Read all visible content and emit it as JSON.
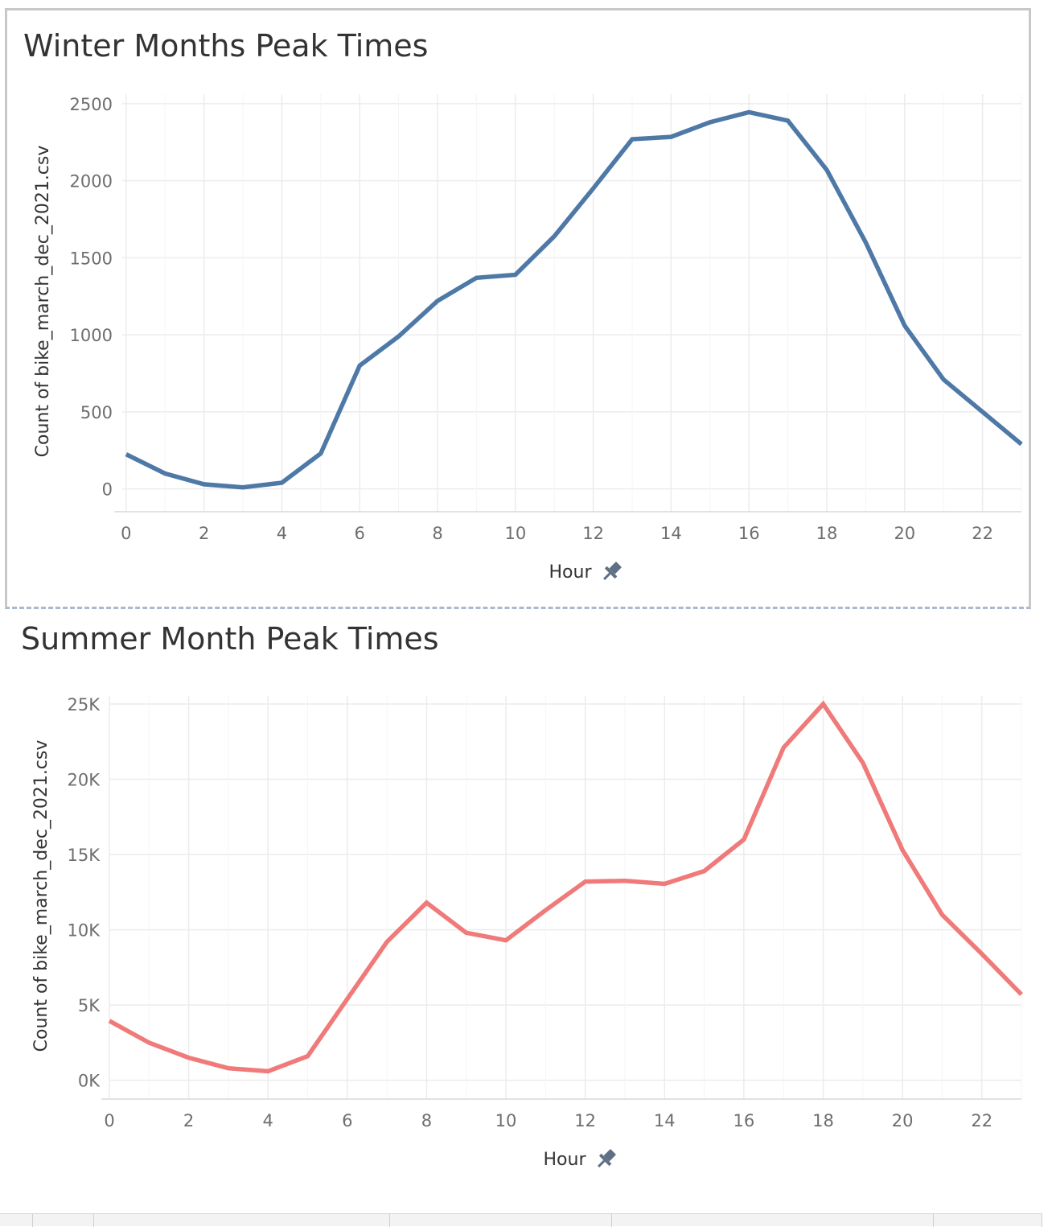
{
  "charts": [
    {
      "id": "winter",
      "title": "Winter Months Peak Times",
      "color": "#4e79a7"
    },
    {
      "id": "summer",
      "title": "Summer Month Peak Times",
      "color": "#f07a7a"
    }
  ],
  "chart_data": [
    {
      "type": "line",
      "title": "Winter Months Peak Times",
      "xlabel": "Hour",
      "ylabel": "Count of bike_march_dec_2021.csv",
      "x": [
        0,
        1,
        2,
        3,
        4,
        5,
        6,
        7,
        8,
        9,
        10,
        11,
        12,
        13,
        14,
        15,
        16,
        17,
        18,
        19,
        20,
        21,
        22,
        23
      ],
      "series": [
        {
          "values": [
            225,
            100,
            30,
            10,
            40,
            230,
            800,
            990,
            1220,
            1370,
            1390,
            1640,
            1950,
            2270,
            2285,
            2380,
            2445,
            2390,
            2070,
            1600,
            1060,
            710,
            500,
            290
          ]
        }
      ],
      "xticks": [
        0,
        2,
        4,
        6,
        8,
        10,
        12,
        14,
        16,
        18,
        20,
        22
      ],
      "xtick_labels": [
        "0",
        "2",
        "4",
        "6",
        "8",
        "10",
        "12",
        "14",
        "16",
        "18",
        "20",
        "22"
      ],
      "yticks": [
        0,
        500,
        1000,
        1500,
        2000,
        2500
      ],
      "ytick_labels": [
        "0",
        "500",
        "1000",
        "1500",
        "2000",
        "2500"
      ],
      "xlim": [
        -0.1,
        23
      ],
      "ylim": [
        -75,
        2510
      ],
      "grid": true,
      "color": "#4e79a7"
    },
    {
      "type": "line",
      "title": "Summer Month Peak Times",
      "xlabel": "Hour",
      "ylabel": "Count of bike_march_dec_2021.csv",
      "x": [
        0,
        1,
        2,
        3,
        4,
        5,
        6,
        7,
        8,
        9,
        10,
        11,
        12,
        13,
        14,
        15,
        16,
        17,
        18,
        19,
        20,
        21,
        22,
        23
      ],
      "series": [
        {
          "values": [
            3950,
            2500,
            1500,
            800,
            600,
            1600,
            5400,
            9200,
            11800,
            9800,
            9300,
            11300,
            13200,
            13250,
            13050,
            13900,
            16000,
            22100,
            25000,
            21100,
            15300,
            11000,
            8400,
            5700
          ]
        }
      ],
      "xticks": [
        0,
        2,
        4,
        6,
        8,
        10,
        12,
        14,
        16,
        18,
        20,
        22
      ],
      "xtick_labels": [
        "0",
        "2",
        "4",
        "6",
        "8",
        "10",
        "12",
        "14",
        "16",
        "18",
        "20",
        "22"
      ],
      "yticks": [
        0,
        5000,
        10000,
        15000,
        20000,
        25000
      ],
      "ytick_labels": [
        "0K",
        "5K",
        "10K",
        "15K",
        "20K",
        "25K"
      ],
      "xlim": [
        0,
        23
      ],
      "ylim": [
        -500,
        25000
      ],
      "grid": true,
      "color": "#f07a7a"
    }
  ],
  "pin_icon": "pin-icon"
}
